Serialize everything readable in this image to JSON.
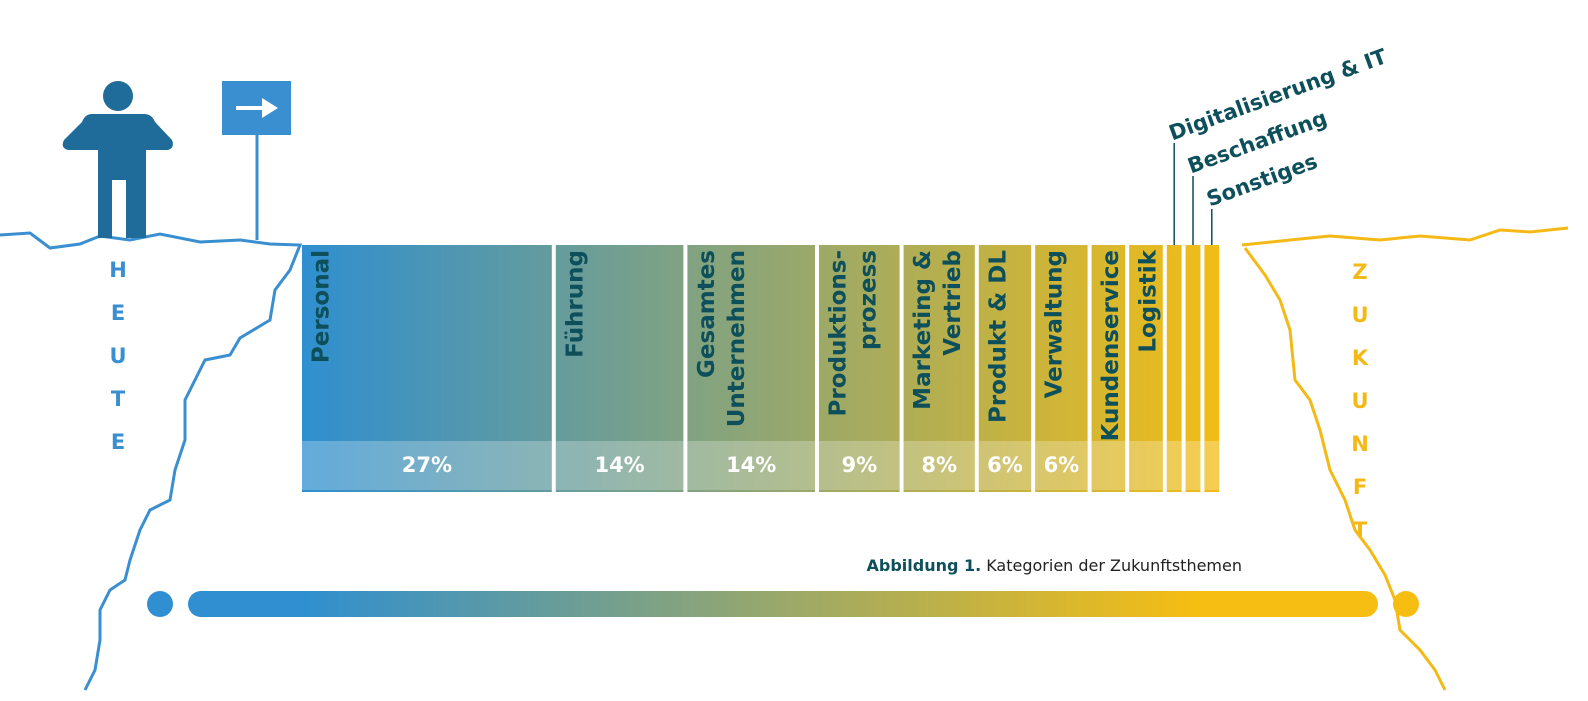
{
  "chart_data": {
    "type": "bar",
    "orientation": "horizontal",
    "stacked": true,
    "categories": [
      [
        "Personal"
      ],
      [
        "Führung"
      ],
      [
        "Gesamtes",
        "Unternehmen"
      ],
      [
        "Produktions-",
        "prozess"
      ],
      [
        "Marketing &",
        "Vertrieb"
      ],
      [
        "Produkt & DL"
      ],
      [
        "Verwaltung"
      ],
      [
        "Kundenservice"
      ],
      [
        "Logistik"
      ],
      [
        "Digitalisierung & IT"
      ],
      [
        "Beschaffung"
      ],
      [
        "Sonstiges"
      ]
    ],
    "values": [
      27,
      14,
      14,
      9,
      8,
      6,
      6,
      4,
      4,
      2,
      2,
      2
    ],
    "value_labels": [
      "27%",
      "14%",
      "14%",
      "9%",
      "8%",
      "6%",
      "6%",
      null,
      null,
      null,
      null,
      null
    ],
    "xlim": [
      0,
      100
    ],
    "colors": [
      "#2f8fd0",
      "#f6be12"
    ],
    "left_label": "HEUTE",
    "right_label": "ZUKUNFT",
    "caption": {
      "number": "Abbildung 1.",
      "text": "Kategorien der Zukunftsthemen"
    }
  }
}
